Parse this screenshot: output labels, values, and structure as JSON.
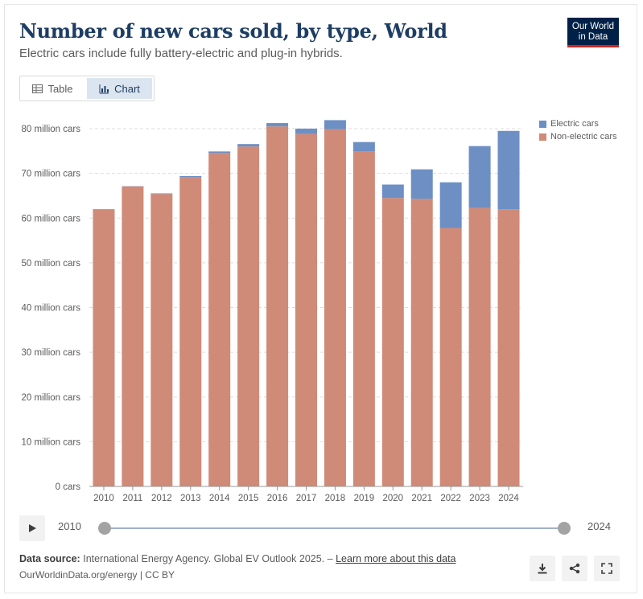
{
  "header": {
    "title": "Number of new cars sold, by type, World",
    "subtitle": "Electric cars include fully battery-electric and plug-in hybrids.",
    "logo_line1": "Our World",
    "logo_line2": "in Data"
  },
  "tabs": {
    "table_label": "Table",
    "chart_label": "Chart"
  },
  "colors": {
    "electric": "#6d8fc4",
    "non_electric": "#d08a78",
    "brand": "#002147"
  },
  "chart_data": {
    "type": "bar",
    "stacked": true,
    "title": "Number of new cars sold, by type, World",
    "categories": [
      "2010",
      "2011",
      "2012",
      "2013",
      "2014",
      "2015",
      "2016",
      "2017",
      "2018",
      "2019",
      "2020",
      "2021",
      "2022",
      "2023",
      "2024"
    ],
    "series": [
      {
        "name": "Non-electric cars",
        "values": [
          62.0,
          67.1,
          65.4,
          69.2,
          74.6,
          76.0,
          80.5,
          78.8,
          79.9,
          74.9,
          64.5,
          64.3,
          57.8,
          62.3,
          62.0
        ]
      },
      {
        "name": "Electric cars",
        "values": [
          0.01,
          0.05,
          0.13,
          0.2,
          0.3,
          0.55,
          0.75,
          1.2,
          2.0,
          2.1,
          3.0,
          6.6,
          10.2,
          13.8,
          17.5
        ]
      }
    ],
    "legend": [
      "Electric cars",
      "Non-electric cars"
    ],
    "ylim": [
      0,
      80
    ],
    "yticks": [
      {
        "value": 0,
        "label": "0 cars"
      },
      {
        "value": 10,
        "label": "10 million cars"
      },
      {
        "value": 20,
        "label": "20 million cars"
      },
      {
        "value": 30,
        "label": "30 million cars"
      },
      {
        "value": 40,
        "label": "40 million cars"
      },
      {
        "value": 50,
        "label": "50 million cars"
      },
      {
        "value": 60,
        "label": "60 million cars"
      },
      {
        "value": 70,
        "label": "70 million cars"
      },
      {
        "value": 80,
        "label": "80 million cars"
      }
    ],
    "legend_position": "top-right"
  },
  "timeline": {
    "start": "2010",
    "end": "2024"
  },
  "footer": {
    "source_label": "Data source:",
    "source_text": "International Energy Agency. Global EV Outlook 2025. –",
    "learn_more": "Learn more about this data",
    "credit": "OurWorldinData.org/energy | CC BY"
  }
}
